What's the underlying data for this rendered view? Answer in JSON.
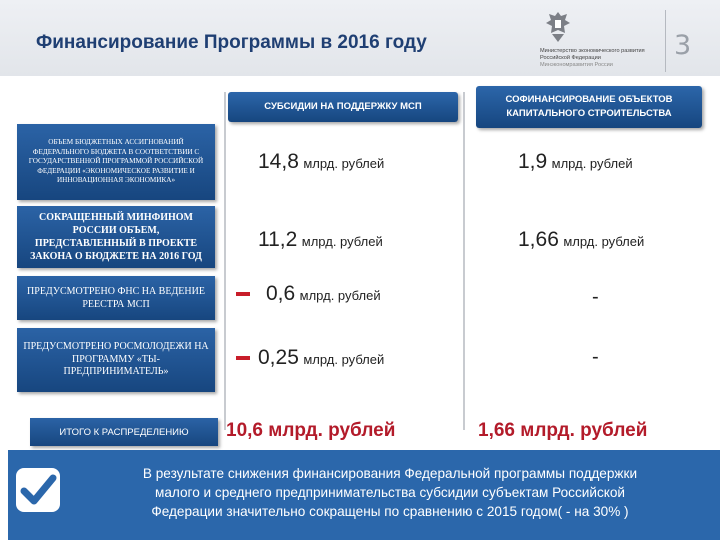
{
  "header": {
    "title": "Финансирование Программы в 2016 году",
    "page_number": "3",
    "ministry": {
      "line1": "Министерство экономического развития",
      "line2": "Российской Федерации",
      "line3": "Минэкономразвития России"
    }
  },
  "columns": {
    "subsidies": "СУБСИДИИ НА ПОДДЕРЖКУ МСП",
    "capital": "СОФИНАНСИРОВАНИЕ ОБЪЕКТОВ КАПИТАЛЬНОГО СТРОИТЕЛЬСТВА"
  },
  "rows": [
    {
      "label": "ОБЪЕМ БЮДЖЕТНЫХ АССИГНОВАНИЙ ФЕДЕРАЛЬНОГО БЮДЖЕТА В СООТВЕТСТВИИ С ГОСУДАРСТВЕННОЙ ПРОГРАММОЙ РОССИЙСКОЙ ФЕДЕРАЦИИ «ЭКОНОМИЧЕСКОЕ РАЗВИТИЕ И ИННОВАЦИОННАЯ ЭКОНОМИКА»",
      "subsidies_num": "14,8",
      "subsidies_unit": "млрд. рублей",
      "capital_num": "1,9",
      "capital_unit": "млрд. рублей"
    },
    {
      "label": "СОКРАЩЕННЫЙ МИНФИНОМ РОССИИ ОБЪЕМ, ПРЕДСТАВЛЕННЫЙ В ПРОЕКТЕ ЗАКОНА О БЮДЖЕТЕ НА 2016 ГОД",
      "subsidies_num": "11,2",
      "subsidies_unit": "млрд. рублей",
      "capital_num": "1,66",
      "capital_unit": "млрд. рублей"
    },
    {
      "label": "ПРЕДУСМОТРЕНО ФНС НА ВЕДЕНИЕ РЕЕСТРА МСП",
      "subsidies_num": "0,6",
      "subsidies_unit": "млрд. рублей",
      "capital_text": "-"
    },
    {
      "label": "ПРЕДУСМОТРЕНО РОСМОЛОДЕЖИ НА ПРОГРАММУ «ТЫ-ПРЕДПРИНИМАТЕЛЬ»",
      "subsidies_num": "0,25",
      "subsidies_unit": "млрд. рублей",
      "capital_text": "-"
    }
  ],
  "total": {
    "label": "ИТОГО К РАСПРЕДЕЛЕНИЮ",
    "subsidies": "10,6 млрд. рублей",
    "capital": "1,66 млрд. рублей"
  },
  "conclusion": {
    "line1": "В результате снижения финансирования Федеральной программы поддержки",
    "line2": "малого и среднего предпринимательства субсидии субъектам Российской",
    "line3": "Федерации значительно сокращены по сравнению с 2015 годом( - на 30% )"
  },
  "colors": {
    "accent_blue": "#1f4f8f",
    "title_blue": "#1f3f73",
    "total_red": "#b31b2a",
    "minus_red": "#c81d2a"
  }
}
